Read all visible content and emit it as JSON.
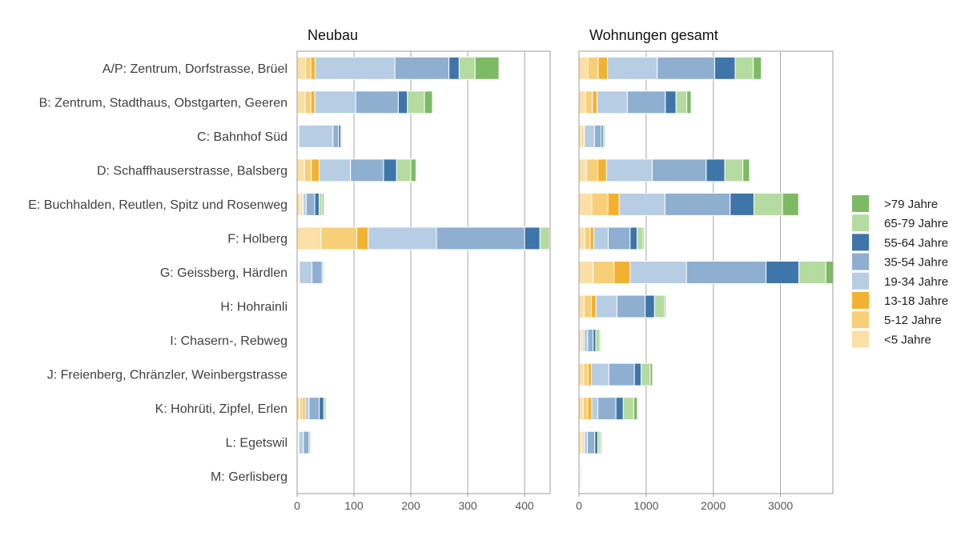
{
  "chart_data": {
    "type": "bar",
    "orientation": "horizontal",
    "stacked": true,
    "categories": [
      "A/P: Zentrum, Dorfstrasse, Brüel",
      "B: Zentrum, Stadthaus, Obstgarten, Geeren",
      "C: Bahnhof Süd",
      "D: Schaffhauserstrasse, Balsberg",
      "E: Buchhalden, Reutlen, Spitz und Rosenweg",
      "F: Holberg",
      "G: Geissberg, Härdlen",
      "H: Hohrainli",
      "I: Chasern-, Rebweg",
      "J: Freienberg, Chränzler, Weinbergstrasse",
      "K: Hohrüti, Zipfel, Erlen",
      "L: Egetswil",
      "M: Gerlisberg"
    ],
    "legend": {
      "placement": "right",
      "order": [
        ">79 Jahre",
        "65-79 Jahre",
        "55-64 Jahre",
        "35-54 Jahre",
        "19-34 Jahre",
        "13-18 Jahre",
        "5-12 Jahre",
        "<5 Jahre"
      ]
    },
    "series_colors": {
      "<5 Jahre": "#fbdfa6",
      "5-12 Jahre": "#f7cf78",
      "13-18 Jahre": "#f2b231",
      "19-34 Jahre": "#b7cde3",
      "35-54 Jahre": "#8fafd0",
      "55-64 Jahre": "#3f76aa",
      "65-79 Jahre": "#b5dba0",
      ">79 Jahre": "#7dba64"
    },
    "panels": [
      {
        "title": "Neubau",
        "xlim": [
          0,
          445
        ],
        "xticks": [
          0,
          100,
          200,
          300,
          400
        ],
        "xtick_labels": [
          "0",
          "100",
          "200",
          "300",
          "400"
        ],
        "series": [
          {
            "name": "<5 Jahre",
            "values": [
              15,
              14,
              0,
              13,
              6,
              42,
              2,
              0,
              0,
              0,
              5,
              1,
              0
            ]
          },
          {
            "name": "5-12 Jahre",
            "values": [
              9,
              10,
              2,
              12,
              3,
              63,
              1,
              0,
              0,
              0,
              5,
              1,
              0
            ]
          },
          {
            "name": "13-18 Jahre",
            "values": [
              8,
              7,
              1,
              14,
              2,
              20,
              1,
              0,
              0,
              0,
              4,
              1,
              0
            ]
          },
          {
            "name": "19-34 Jahre",
            "values": [
              140,
              72,
              60,
              55,
              5,
              120,
              22,
              0,
              1,
              0,
              7,
              8,
              0
            ]
          },
          {
            "name": "35-54 Jahre",
            "values": [
              95,
              75,
              10,
              58,
              15,
              155,
              18,
              0,
              1,
              0,
              18,
              10,
              0
            ]
          },
          {
            "name": "55-64 Jahre",
            "values": [
              18,
              16,
              4,
              23,
              8,
              27,
              2,
              0,
              0,
              0,
              8,
              2,
              0
            ]
          },
          {
            "name": "65-79 Jahre",
            "values": [
              28,
              30,
              2,
              25,
              5,
              17,
              2,
              0,
              0,
              0,
              4,
              2,
              0
            ]
          },
          {
            "name": ">79 Jahre",
            "values": [
              42,
              14,
              0,
              9,
              3,
              0,
              0,
              0,
              0,
              0,
              1,
              0,
              0
            ]
          }
        ]
      },
      {
        "title": "Wohnungen gesamt",
        "xlim": [
          0,
          3780
        ],
        "xticks": [
          0,
          1000,
          2000,
          3000
        ],
        "xtick_labels": [
          "0",
          "1000",
          "2000",
          "3000"
        ],
        "series": [
          {
            "name": "<5 Jahre",
            "values": [
              130,
              100,
              40,
              110,
              190,
              85,
              210,
              75,
              30,
              70,
              60,
              35,
              8
            ]
          },
          {
            "name": "5-12 Jahre",
            "values": [
              155,
              100,
              30,
              170,
              240,
              80,
              310,
              110,
              25,
              65,
              70,
              25,
              7
            ]
          },
          {
            "name": "13-18 Jahre",
            "values": [
              140,
              70,
              10,
              130,
              170,
              55,
              240,
              70,
              20,
              50,
              60,
              20,
              5
            ]
          },
          {
            "name": "19-34 Jahre",
            "values": [
              740,
              450,
              150,
              680,
              680,
              215,
              840,
              310,
              55,
              260,
              90,
              45,
              5
            ]
          },
          {
            "name": "35-54 Jahre",
            "values": [
              855,
              565,
              100,
              805,
              970,
              325,
              1185,
              420,
              80,
              380,
              270,
              110,
              15
            ]
          },
          {
            "name": "55-64 Jahre",
            "values": [
              305,
              160,
              30,
              275,
              355,
              105,
              490,
              140,
              40,
              100,
              110,
              45,
              5
            ]
          },
          {
            "name": "65-79 Jahre",
            "values": [
              270,
              160,
              30,
              270,
              425,
              90,
              400,
              150,
              60,
              135,
              155,
              35,
              5
            ]
          },
          {
            ">79 Jahre": "",
            "name": ">79 Jahre",
            "values": [
              120,
              65,
              10,
              100,
              240,
              20,
              105,
              20,
              15,
              35,
              55,
              20,
              2
            ]
          }
        ]
      }
    ]
  }
}
